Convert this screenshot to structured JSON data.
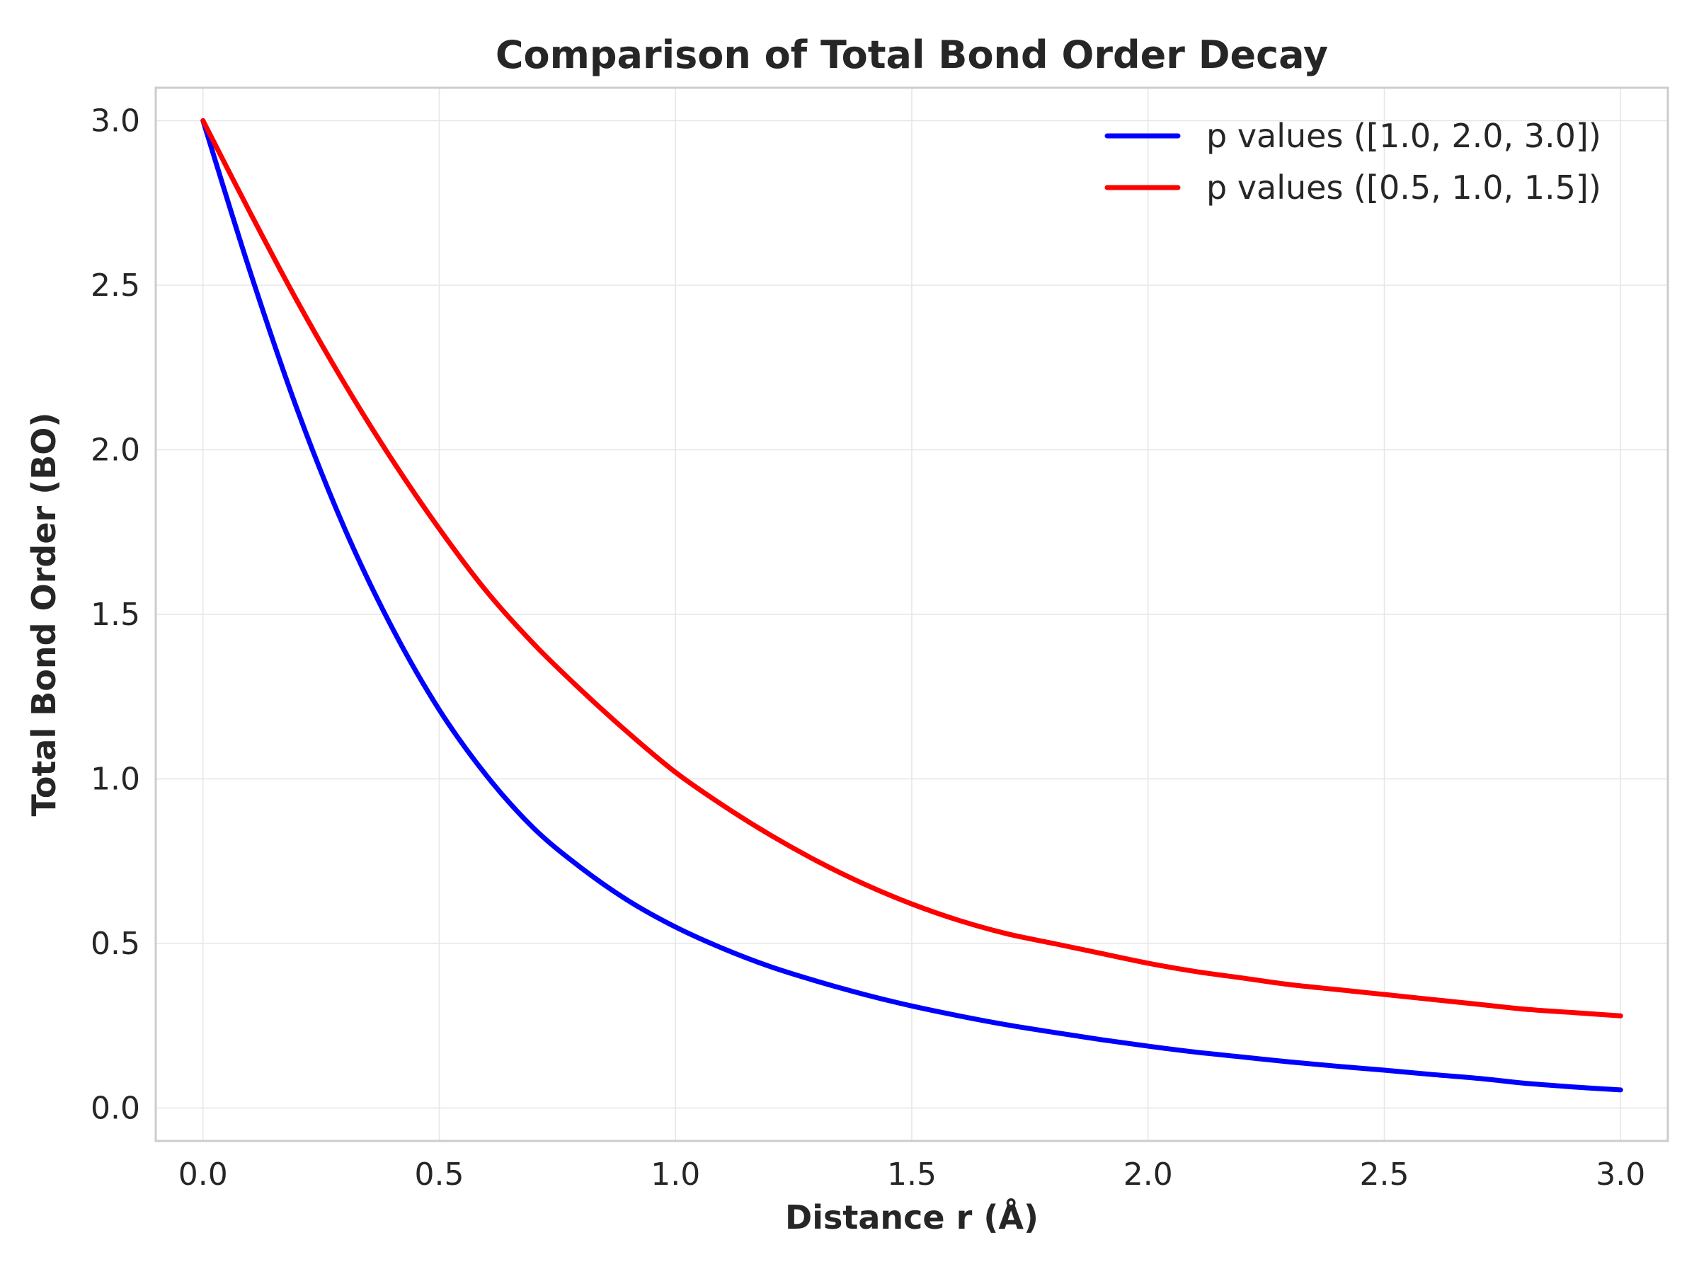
{
  "chart_data": {
    "type": "line",
    "title": "Comparison of Total Bond Order Decay",
    "xlabel": "Distance r (Å)",
    "ylabel": "Total Bond Order (BO)",
    "xlim": [
      -0.1,
      3.1
    ],
    "ylim": [
      -0.1,
      3.1
    ],
    "xticks": [
      "0.0",
      "0.5",
      "1.0",
      "1.5",
      "2.0",
      "2.5",
      "3.0"
    ],
    "yticks": [
      "0.0",
      "0.5",
      "1.0",
      "1.5",
      "2.0",
      "2.5",
      "3.0"
    ],
    "grid": true,
    "legend_position": "top-right",
    "x": [
      0.0,
      0.1,
      0.2,
      0.3,
      0.4,
      0.5,
      0.6,
      0.7,
      0.8,
      0.9,
      1.0,
      1.1,
      1.2,
      1.3,
      1.4,
      1.5,
      1.6,
      1.7,
      1.8,
      1.9,
      2.0,
      2.1,
      2.2,
      2.3,
      2.4,
      2.5,
      2.6,
      2.7,
      2.8,
      2.9,
      3.0
    ],
    "series": [
      {
        "name": "p values ([1.0, 2.0, 3.0])",
        "color": "#0000ff",
        "values": [
          3.0,
          2.54,
          2.12,
          1.76,
          1.46,
          1.21,
          1.01,
          0.85,
          0.73,
          0.63,
          0.55,
          0.485,
          0.43,
          0.385,
          0.345,
          0.31,
          0.28,
          0.253,
          0.23,
          0.208,
          0.188,
          0.17,
          0.155,
          0.14,
          0.127,
          0.115,
          0.102,
          0.09,
          0.075,
          0.064,
          0.055
        ]
      },
      {
        "name": "p values ([0.5, 1.0, 1.5])",
        "color": "#ff0000",
        "values": [
          3.0,
          2.72,
          2.45,
          2.2,
          1.97,
          1.76,
          1.57,
          1.41,
          1.27,
          1.14,
          1.02,
          0.92,
          0.83,
          0.75,
          0.68,
          0.62,
          0.57,
          0.53,
          0.5,
          0.47,
          0.44,
          0.415,
          0.395,
          0.375,
          0.36,
          0.345,
          0.33,
          0.315,
          0.3,
          0.29,
          0.28
        ]
      }
    ]
  }
}
